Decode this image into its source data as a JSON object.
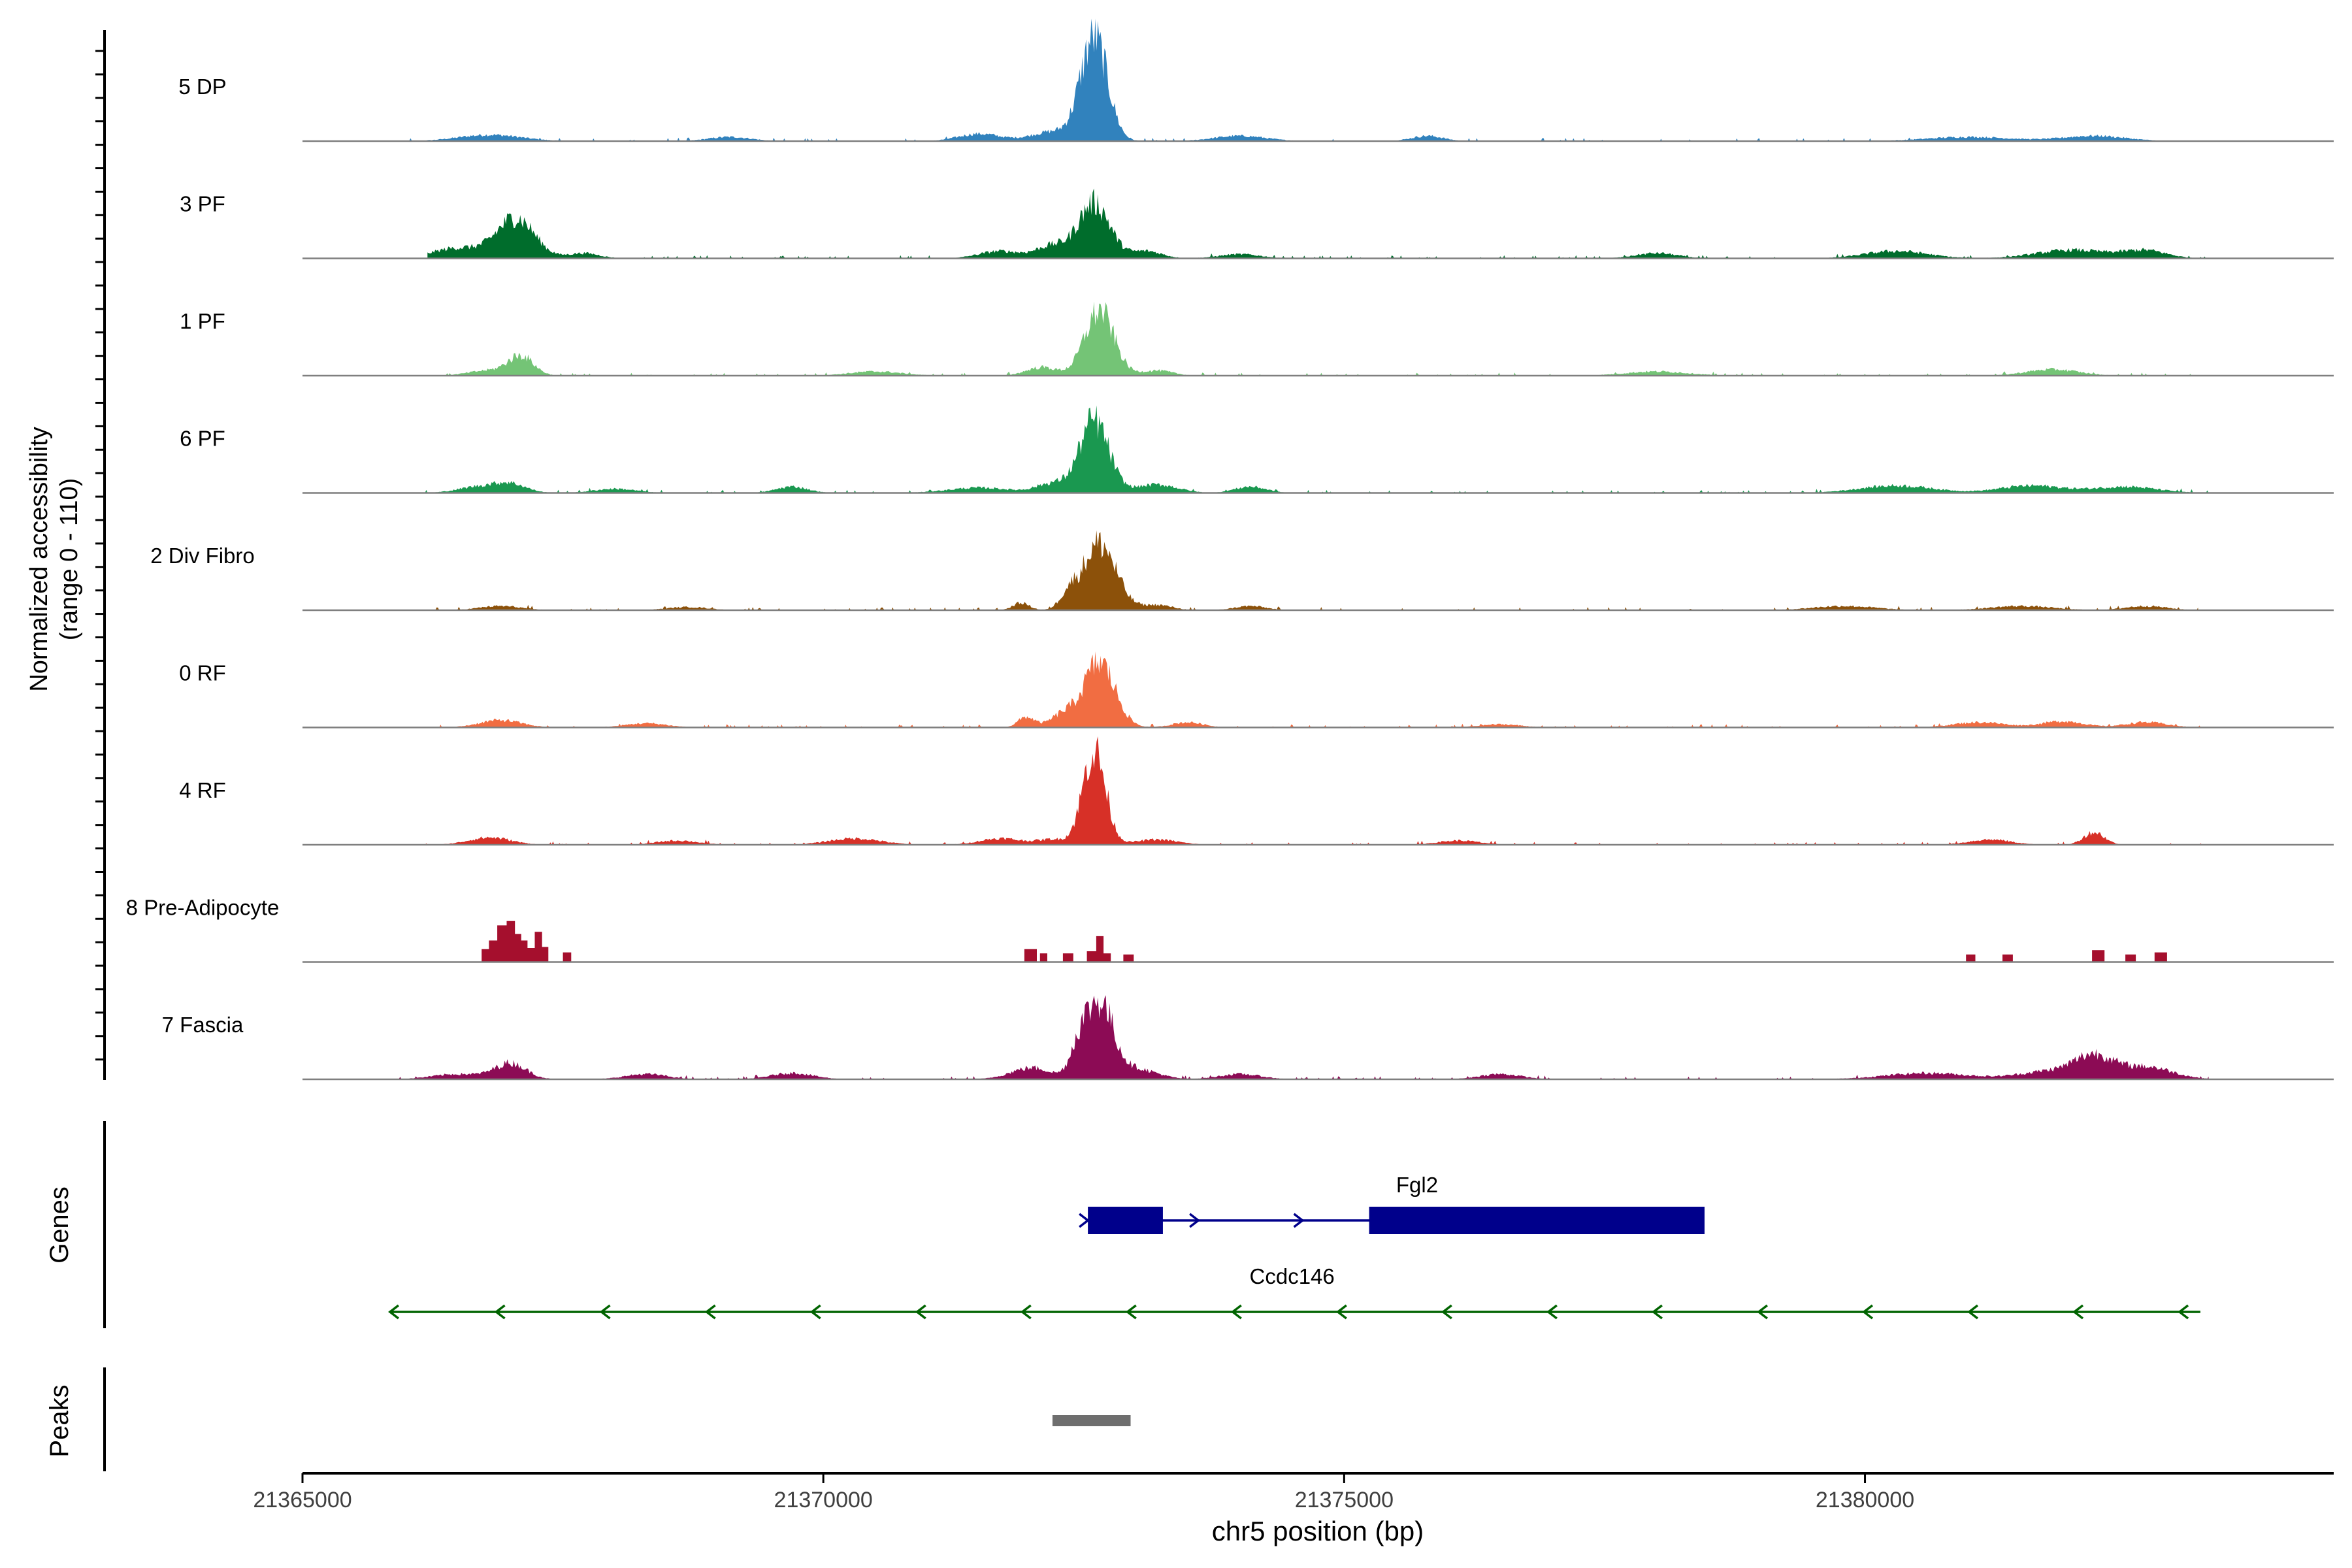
{
  "chart_data": {
    "type": "area",
    "title": "",
    "ylabel_line1": "Normalized accessibility",
    "ylabel_line2": "(range 0 - 110)",
    "y_range": [
      0,
      110
    ],
    "xlabel": "chr5 position (bp)",
    "xlim": [
      21365000,
      21384500
    ],
    "x_ticks": [
      21365000,
      21370000,
      21375000,
      21380000
    ],
    "x_tick_labels": [
      "21365000",
      "21370000",
      "21375000",
      "21380000"
    ],
    "genes_label": "Genes",
    "peaks_label": "Peaks",
    "tracks": [
      {
        "name": "5 DP",
        "color": "#3182bd",
        "start": 21366000,
        "end": 21383000,
        "bumps": [
          [
            21366800,
            300,
            0.06
          ],
          [
            21369100,
            200,
            0.04
          ],
          [
            21371500,
            200,
            0.07
          ],
          [
            21372200,
            200,
            0.09
          ],
          [
            21372600,
            130,
            0.98
          ],
          [
            21374000,
            250,
            0.05
          ],
          [
            21375800,
            150,
            0.05
          ],
          [
            21381000,
            400,
            0.04
          ],
          [
            21382200,
            300,
            0.05
          ]
        ]
      },
      {
        "name": "3 PF",
        "color": "#006d2c",
        "start": 21366200,
        "end": 21383300,
        "bumps": [
          [
            21366500,
            250,
            0.1
          ],
          [
            21367050,
            180,
            0.38
          ],
          [
            21367700,
            150,
            0.05
          ],
          [
            21371700,
            200,
            0.07
          ],
          [
            21372200,
            150,
            0.12
          ],
          [
            21372600,
            150,
            0.53
          ],
          [
            21373100,
            150,
            0.07
          ],
          [
            21374000,
            200,
            0.04
          ],
          [
            21378000,
            200,
            0.05
          ],
          [
            21380300,
            300,
            0.07
          ],
          [
            21382000,
            350,
            0.08
          ],
          [
            21382700,
            200,
            0.07
          ]
        ]
      },
      {
        "name": "1 PF",
        "color": "#74c476",
        "start": 21366000,
        "end": 21383300,
        "bumps": [
          [
            21366800,
            200,
            0.05
          ],
          [
            21367100,
            120,
            0.18
          ],
          [
            21370500,
            250,
            0.04
          ],
          [
            21372100,
            150,
            0.08
          ],
          [
            21372650,
            140,
            0.62
          ],
          [
            21373200,
            150,
            0.05
          ],
          [
            21378000,
            300,
            0.04
          ],
          [
            21381800,
            250,
            0.06
          ]
        ]
      },
      {
        "name": "6 PF",
        "color": "#1a9850",
        "start": 21365900,
        "end": 21383300,
        "bumps": [
          [
            21366700,
            200,
            0.06
          ],
          [
            21367000,
            150,
            0.08
          ],
          [
            21368000,
            200,
            0.04
          ],
          [
            21369700,
            150,
            0.06
          ],
          [
            21371500,
            300,
            0.05
          ],
          [
            21372200,
            150,
            0.09
          ],
          [
            21372600,
            140,
            0.69
          ],
          [
            21373200,
            200,
            0.08
          ],
          [
            21374100,
            150,
            0.06
          ],
          [
            21380300,
            350,
            0.07
          ],
          [
            21381600,
            300,
            0.07
          ],
          [
            21382500,
            300,
            0.06
          ]
        ]
      },
      {
        "name": "2 Div Fibro",
        "color": "#8c510a",
        "start": 21366200,
        "end": 21383200,
        "bumps": [
          [
            21366900,
            200,
            0.04
          ],
          [
            21368700,
            200,
            0.03
          ],
          [
            21371900,
            80,
            0.07
          ],
          [
            21372350,
            80,
            0.13
          ],
          [
            21372650,
            160,
            0.64
          ],
          [
            21373200,
            150,
            0.05
          ],
          [
            21374100,
            150,
            0.04
          ],
          [
            21379800,
            300,
            0.04
          ],
          [
            21381500,
            300,
            0.04
          ],
          [
            21382700,
            200,
            0.04
          ]
        ]
      },
      {
        "name": "0 RF",
        "color": "#f16d42",
        "start": 21366000,
        "end": 21383300,
        "bumps": [
          [
            21366900,
            200,
            0.07
          ],
          [
            21368300,
            200,
            0.04
          ],
          [
            21371950,
            80,
            0.1
          ],
          [
            21372300,
            120,
            0.12
          ],
          [
            21372650,
            150,
            0.62
          ],
          [
            21373500,
            150,
            0.05
          ],
          [
            21376500,
            200,
            0.03
          ],
          [
            21381100,
            250,
            0.05
          ],
          [
            21381900,
            200,
            0.06
          ],
          [
            21382700,
            200,
            0.05
          ]
        ]
      },
      {
        "name": "4 RF",
        "color": "#d73027",
        "start": 21366000,
        "end": 21383300,
        "bumps": [
          [
            21366800,
            200,
            0.07
          ],
          [
            21368600,
            200,
            0.04
          ],
          [
            21370300,
            250,
            0.06
          ],
          [
            21371700,
            200,
            0.06
          ],
          [
            21372200,
            150,
            0.05
          ],
          [
            21372600,
            110,
            0.9
          ],
          [
            21373200,
            200,
            0.05
          ],
          [
            21376100,
            200,
            0.04
          ],
          [
            21381200,
            200,
            0.05
          ],
          [
            21382200,
            100,
            0.12
          ]
        ]
      },
      {
        "name": "8 Pre-Adipocyte",
        "color": "#a50f2d",
        "start": 21366000,
        "end": 21383200,
        "blocks": [
          [
            21366720,
            21366790,
            0.12
          ],
          [
            21366790,
            21366870,
            0.2
          ],
          [
            21366870,
            21366960,
            0.34
          ],
          [
            21366960,
            21367040,
            0.38
          ],
          [
            21367040,
            21367100,
            0.26
          ],
          [
            21367100,
            21367160,
            0.2
          ],
          [
            21367160,
            21367230,
            0.13
          ],
          [
            21367230,
            21367300,
            0.28
          ],
          [
            21367300,
            21367360,
            0.14
          ],
          [
            21367500,
            21367580,
            0.09
          ],
          [
            21371930,
            21372050,
            0.12
          ],
          [
            21372080,
            21372150,
            0.08
          ],
          [
            21372300,
            21372400,
            0.08
          ],
          [
            21372530,
            21372620,
            0.1
          ],
          [
            21372620,
            21372690,
            0.24
          ],
          [
            21372690,
            21372760,
            0.08
          ],
          [
            21372880,
            21372980,
            0.07
          ],
          [
            21380970,
            21381060,
            0.07
          ],
          [
            21381320,
            21381420,
            0.07
          ],
          [
            21382180,
            21382300,
            0.11
          ],
          [
            21382500,
            21382600,
            0.07
          ],
          [
            21382780,
            21382900,
            0.09
          ]
        ]
      },
      {
        "name": "7 Fascia",
        "color": "#8c0b55",
        "start": 21365900,
        "end": 21383300,
        "bumps": [
          [
            21366500,
            250,
            0.05
          ],
          [
            21367000,
            150,
            0.15
          ],
          [
            21368300,
            200,
            0.05
          ],
          [
            21369700,
            200,
            0.06
          ],
          [
            21372000,
            200,
            0.11
          ],
          [
            21372450,
            80,
            0.25
          ],
          [
            21372650,
            130,
            0.73
          ],
          [
            21373000,
            200,
            0.1
          ],
          [
            21374000,
            200,
            0.05
          ],
          [
            21376500,
            200,
            0.05
          ],
          [
            21380600,
            400,
            0.06
          ],
          [
            21381800,
            300,
            0.08
          ],
          [
            21382200,
            180,
            0.2
          ],
          [
            21382700,
            250,
            0.12
          ]
        ]
      }
    ],
    "genes": [
      {
        "name": "Fgl2",
        "strand": "+",
        "start": 21372540,
        "end": 21378460,
        "color": "#00008b",
        "exons": [
          [
            21372540,
            21373260
          ],
          [
            21375240,
            21378460
          ]
        ],
        "arrows": [
          21372540,
          21373600,
          21374600
        ]
      },
      {
        "name": "Ccdc146",
        "strand": "-",
        "start": 21365840,
        "end": 21383220,
        "color": "#006400",
        "exons": [],
        "arrows": [
          21365840,
          21366860,
          21367870,
          21368880,
          21369890,
          21370900,
          21371910,
          21372920,
          21373930,
          21374940,
          21375950,
          21376960,
          21377970,
          21378980,
          21379990,
          21381000,
          21382010,
          21383020
        ]
      }
    ],
    "peaks": [
      [
        21372200,
        21372950
      ]
    ],
    "colors": {
      "axis": "#000000",
      "baseline": "#7f7f7f",
      "peak": "#6e6e6e",
      "text": "#000000",
      "tick_text": "#404040"
    }
  }
}
